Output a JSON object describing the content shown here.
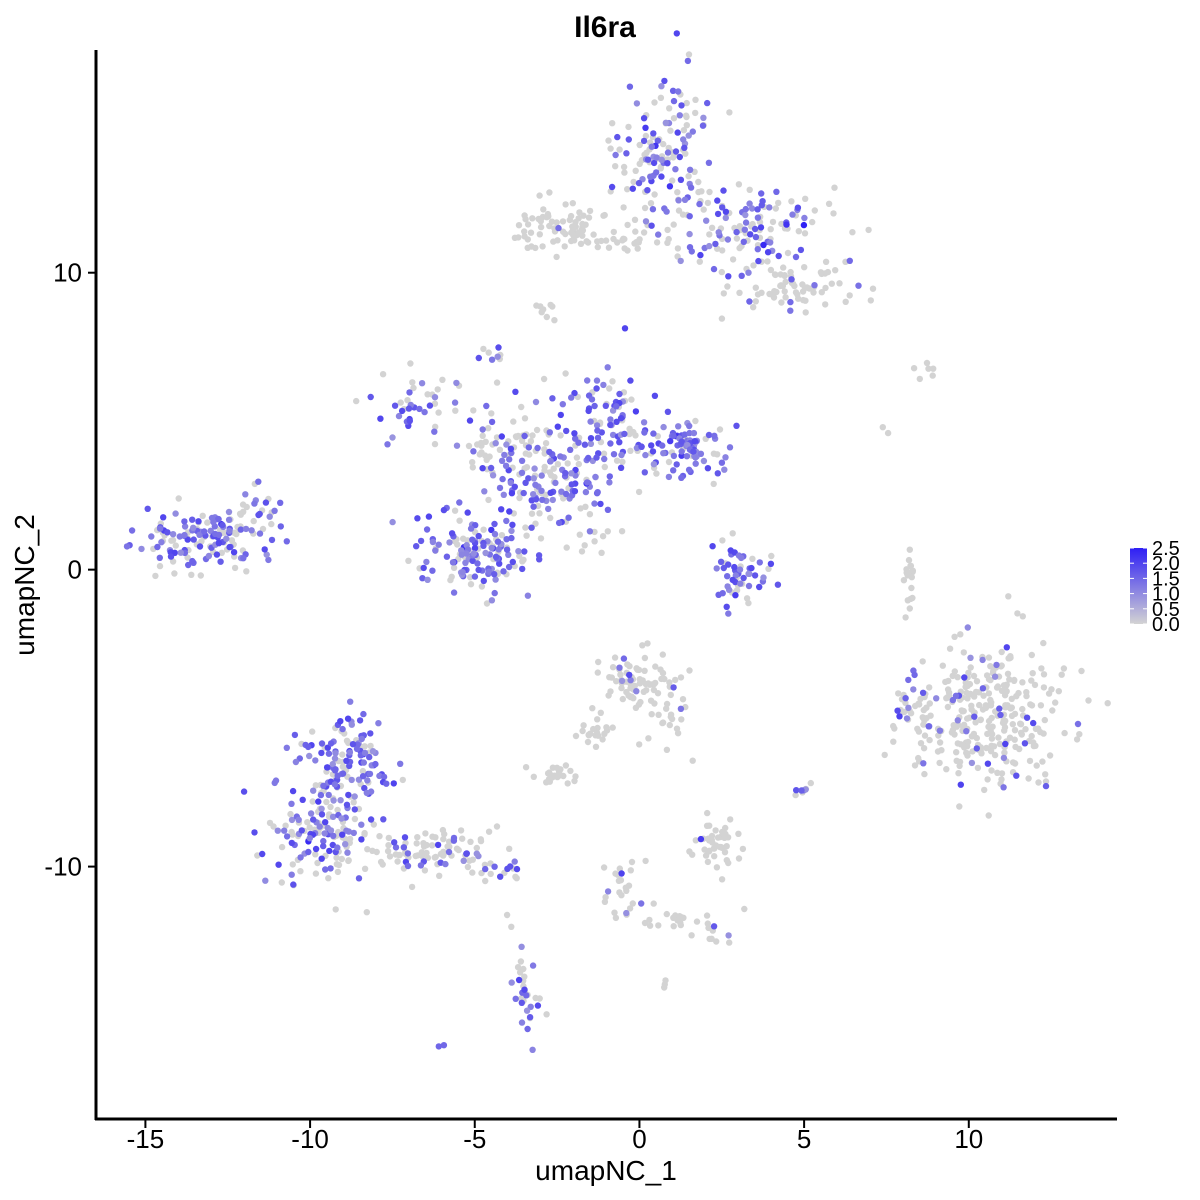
{
  "colors": {
    "low": "#d3d3d3",
    "high": "#2e1ff5",
    "axis": "#000000"
  },
  "chart_data": {
    "type": "scatter",
    "title": "Il6ra",
    "xlabel": "umapNC_1",
    "ylabel": "umapNC_2",
    "xlim": [
      -16.5,
      14.5
    ],
    "ylim": [
      -18.5,
      17.5
    ],
    "xticks": [
      -15,
      -10,
      -5,
      0,
      5,
      10
    ],
    "yticks": [
      -10,
      0,
      10
    ],
    "grid": false,
    "legend": {
      "placement": "right",
      "ticks": [
        "2.5",
        "2.0",
        "1.5",
        "1.0",
        "0.5",
        "0.0"
      ],
      "range": [
        0,
        2.5
      ]
    },
    "clusters": [
      {
        "cx": 0.8,
        "cy": 14.0,
        "sx": 0.8,
        "sy": 1.4,
        "n": 150,
        "expr": 0.55
      },
      {
        "cx": 3.6,
        "cy": 11.5,
        "sx": 1.2,
        "sy": 0.7,
        "n": 120,
        "expr": 0.45
      },
      {
        "cx": 4.6,
        "cy": 9.5,
        "sx": 0.9,
        "sy": 0.5,
        "n": 70,
        "expr": 0.1
      },
      {
        "cx": -2.4,
        "cy": 11.5,
        "sx": 0.8,
        "sy": 0.4,
        "n": 70,
        "expr": 0.03
      },
      {
        "cx": -0.6,
        "cy": 11.1,
        "sx": 1.0,
        "sy": 0.25,
        "n": 25,
        "expr": 0.0
      },
      {
        "cx": -2.8,
        "cy": 8.7,
        "sx": 0.15,
        "sy": 0.3,
        "n": 8,
        "expr": 0.0
      },
      {
        "cx": -4.5,
        "cy": 7.3,
        "sx": 0.15,
        "sy": 0.2,
        "n": 8,
        "expr": 0.5
      },
      {
        "cx": -6.5,
        "cy": 5.5,
        "sx": 0.7,
        "sy": 0.5,
        "n": 45,
        "expr": 0.55
      },
      {
        "cx": -1.0,
        "cy": 5.5,
        "sx": 0.6,
        "sy": 0.6,
        "n": 60,
        "expr": 0.7
      },
      {
        "cx": 1.7,
        "cy": 4.2,
        "sx": 0.6,
        "sy": 0.5,
        "n": 70,
        "expr": 0.85
      },
      {
        "cx": -0.3,
        "cy": 4.0,
        "sx": 1.2,
        "sy": 0.5,
        "n": 60,
        "expr": 0.55
      },
      {
        "cx": -2.6,
        "cy": 3.0,
        "sx": 1.0,
        "sy": 0.7,
        "n": 110,
        "expr": 0.7
      },
      {
        "cx": -3.4,
        "cy": 4.5,
        "sx": 0.6,
        "sy": 0.6,
        "n": 40,
        "expr": 0.35
      },
      {
        "cx": -4.9,
        "cy": 0.6,
        "sx": 0.9,
        "sy": 0.7,
        "n": 150,
        "expr": 0.65
      },
      {
        "cx": -4.3,
        "cy": 4.0,
        "sx": 0.7,
        "sy": 0.35,
        "n": 30,
        "expr": 0.3
      },
      {
        "cx": -1.5,
        "cy": 1.2,
        "sx": 0.5,
        "sy": 0.3,
        "n": 12,
        "expr": 0.05
      },
      {
        "cx": -13.1,
        "cy": 1.0,
        "sx": 1.0,
        "sy": 0.55,
        "n": 150,
        "expr": 0.5
      },
      {
        "cx": -11.6,
        "cy": 2.1,
        "sx": 0.3,
        "sy": 0.3,
        "n": 15,
        "expr": 0.5
      },
      {
        "cx": 3.1,
        "cy": -0.2,
        "sx": 0.5,
        "sy": 0.5,
        "n": 55,
        "expr": 0.7
      },
      {
        "cx": 8.2,
        "cy": -0.3,
        "sx": 0.1,
        "sy": 0.5,
        "n": 20,
        "expr": 0.0
      },
      {
        "cx": 10.5,
        "cy": -4.8,
        "sx": 1.2,
        "sy": 1.2,
        "n": 320,
        "expr": 0.12
      },
      {
        "cx": 8.1,
        "cy": -4.5,
        "sx": 0.2,
        "sy": 0.4,
        "n": 15,
        "expr": 0.25
      },
      {
        "cx": -0.2,
        "cy": -3.7,
        "sx": 0.6,
        "sy": 0.5,
        "n": 80,
        "expr": 0.15
      },
      {
        "cx": 0.9,
        "cy": -5.2,
        "sx": 0.3,
        "sy": 0.4,
        "n": 20,
        "expr": 0.05
      },
      {
        "cx": -1.5,
        "cy": -5.5,
        "sx": 0.3,
        "sy": 0.4,
        "n": 20,
        "expr": 0.0
      },
      {
        "cx": -2.5,
        "cy": -6.9,
        "sx": 0.35,
        "sy": 0.2,
        "n": 25,
        "expr": 0.0
      },
      {
        "cx": 2.3,
        "cy": -9.2,
        "sx": 0.4,
        "sy": 0.5,
        "n": 45,
        "expr": 0.05
      },
      {
        "cx": 5.0,
        "cy": -7.3,
        "sx": 0.15,
        "sy": 0.2,
        "n": 8,
        "expr": 0.6
      },
      {
        "cx": -8.9,
        "cy": -6.5,
        "sx": 0.7,
        "sy": 0.8,
        "n": 120,
        "expr": 0.65
      },
      {
        "cx": -9.6,
        "cy": -8.8,
        "sx": 0.8,
        "sy": 0.8,
        "n": 150,
        "expr": 0.5
      },
      {
        "cx": -6.5,
        "cy": -9.5,
        "sx": 1.1,
        "sy": 0.4,
        "n": 90,
        "expr": 0.25
      },
      {
        "cx": -4.3,
        "cy": -10.2,
        "sx": 0.4,
        "sy": 0.2,
        "n": 15,
        "expr": 0.5
      },
      {
        "cx": -0.5,
        "cy": -10.5,
        "sx": 0.3,
        "sy": 0.8,
        "n": 25,
        "expr": 0.1
      },
      {
        "cx": 1.2,
        "cy": -11.7,
        "sx": 0.8,
        "sy": 0.25,
        "n": 20,
        "expr": 0.0
      },
      {
        "cx": 2.3,
        "cy": -12.4,
        "sx": 0.2,
        "sy": 0.2,
        "n": 8,
        "expr": 0.4
      },
      {
        "cx": -3.4,
        "cy": -14.5,
        "sx": 0.2,
        "sy": 0.6,
        "n": 25,
        "expr": 0.7
      },
      {
        "cx": -3.6,
        "cy": -13.8,
        "sx": 0.1,
        "sy": 0.4,
        "n": 6,
        "expr": 0.0
      },
      {
        "cx": -6.0,
        "cy": -16.0,
        "sx": 0.05,
        "sy": 0.05,
        "n": 2,
        "expr": 0.6
      },
      {
        "cx": 8.6,
        "cy": 6.7,
        "sx": 0.3,
        "sy": 0.15,
        "n": 6,
        "expr": 0.0
      },
      {
        "cx": 7.5,
        "cy": 4.6,
        "sx": 0.05,
        "sy": 0.1,
        "n": 2,
        "expr": 0.3
      },
      {
        "cx": 0.7,
        "cy": -14.0,
        "sx": 0.1,
        "sy": 0.1,
        "n": 3,
        "expr": 0.0
      },
      {
        "cx": -3.9,
        "cy": -11.8,
        "sx": 0.05,
        "sy": 0.1,
        "n": 2,
        "expr": 0.0
      }
    ]
  }
}
